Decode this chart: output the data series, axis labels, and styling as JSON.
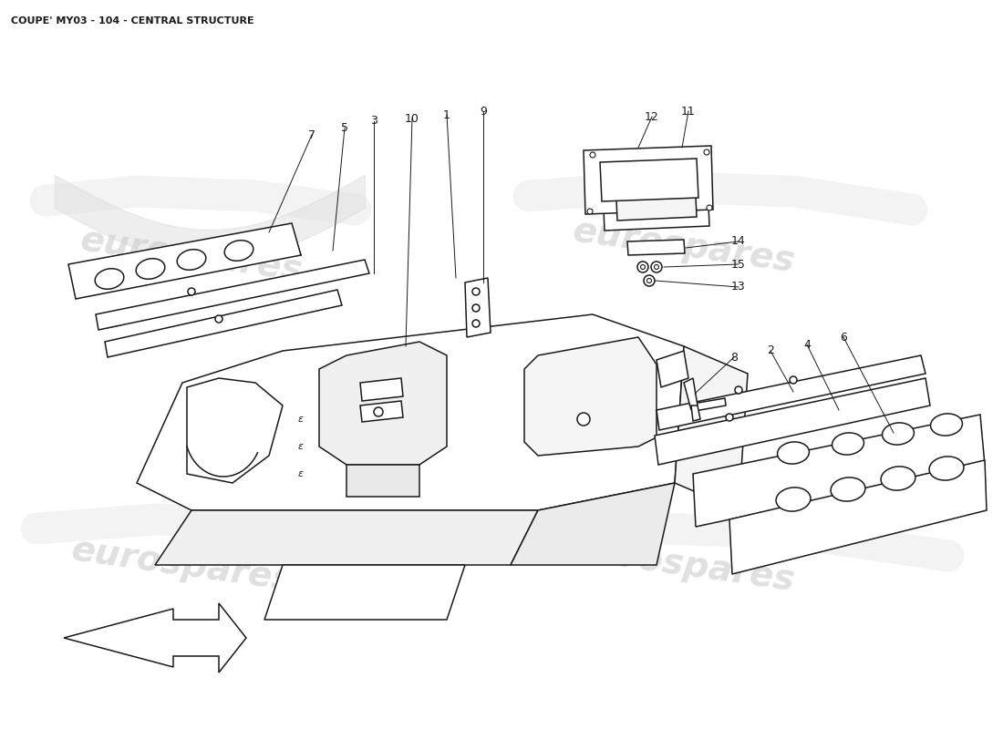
{
  "title": "COUPE' MY03 - 104 - CENTRAL STRUCTURE",
  "title_fontsize": 8,
  "title_color": "#1a1a1a",
  "background_color": "#ffffff",
  "watermark_text": "eurospares",
  "watermark_color": "#cccccc",
  "watermark_fontsize": 28,
  "line_color": "#1a1a1a",
  "line_width": 1.1,
  "callout_fontsize": 9
}
